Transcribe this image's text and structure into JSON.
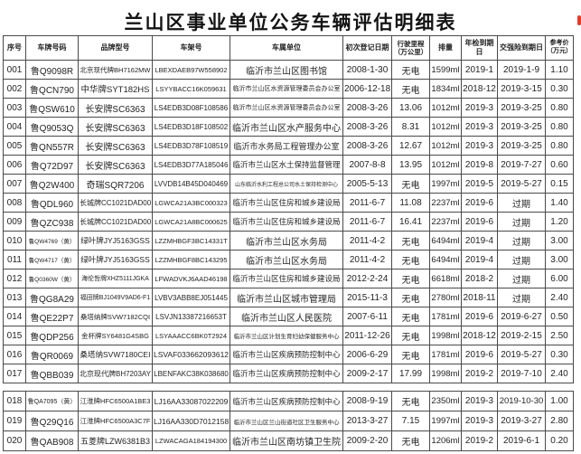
{
  "page": {
    "title": "兰山区事业单位公务车辆评估明细表"
  },
  "colors": {
    "red_mark": "#e23b2e",
    "border": "#4a4a4a",
    "text": "#262626"
  },
  "icons": {
    "red_mark": "red-edge-mark"
  },
  "table": {
    "column_keys": [
      "cell-index",
      "cell-plate-number",
      "cell-brand-model",
      "cell-vin",
      "cell-owner-unit",
      "cell-registration-date",
      "cell-mileage",
      "cell-displacement",
      "cell-inspection-due",
      "cell-insurance-due",
      "cell-reference-price"
    ],
    "headers": [
      "序号",
      "车牌号码",
      "品牌型号",
      "车架号",
      "车属单位",
      "初次登记日期",
      "行驶里程\n（万公里）",
      "排量",
      "年检到期日",
      "交强险到期日",
      "参考价\n（万元）"
    ],
    "rows": [
      [
        "001",
        "鲁Q9098R",
        "北京现代牌BH7162MW",
        "LBEXDAEB97W558902",
        "临沂市兰山区图书馆",
        "2008-1-30",
        "无电",
        "1599ml",
        "2019-1",
        "2019-1-9",
        "1.10"
      ],
      [
        "002",
        "鲁QCN790",
        "中华牌SYT182HS",
        "LSYYBACC16K059631",
        "临沂市兰山区水资源管理委员会办公室",
        "2006-12-18",
        "无电",
        "1834ml",
        "2018-12",
        "2019-3-15",
        "0.30"
      ],
      [
        "003",
        "鲁QSW610",
        "长安牌SC6363",
        "LS4EDB3D08F108586",
        "临沂市兰山区水资源管理委员会办公室",
        "2008-3-26",
        "13.06",
        "1012ml",
        "2019-3",
        "2019-3-25",
        "0.80"
      ],
      [
        "004",
        "鲁Q9053Q",
        "长安牌SC6363",
        "LS4EDB3D18F108502",
        "临沂市兰山区水产服务中心",
        "2008-3-26",
        "8.31",
        "1012ml",
        "2019-3",
        "2019-3-25",
        "0.80"
      ],
      [
        "005",
        "鲁QN557R",
        "长安牌SC6363",
        "LS4EDB3D78F108519",
        "临沂市水务局工程管理办公室",
        "2008-3-26",
        "12.67",
        "1012ml",
        "2019-3",
        "2019-3-25",
        "0.80"
      ],
      [
        "006",
        "鲁Q72D97",
        "长安牌SC6363",
        "LS4EDB3D77A185046",
        "临沂市兰山区水土保持监督管理",
        "2007-8-8",
        "13.95",
        "1012ml",
        "2019-8",
        "2019-7-27",
        "0.60"
      ],
      [
        "007",
        "鲁Q2W400",
        "奇瑞SQR7206",
        "LVVDB14B45D040469",
        "山东临沂水利工程总公司水土保持检测中心",
        "2005-5-13",
        "无电",
        "1997ml",
        "2019-5",
        "2019-5-27",
        "0.15"
      ],
      [
        "008",
        "鲁QDL960",
        "长城牌CC1021DAD00",
        "LGWCA21A3BC000323",
        "临沂市兰山区住房和城乡建设局",
        "2011-6-7",
        "11.08",
        "2237ml",
        "2019-6",
        "过期",
        "1.40"
      ],
      [
        "009",
        "鲁QZC938",
        "长城牌CC1021DAD00",
        "LGWCA21A8BC000625",
        "临沂市兰山区住房和城乡建设局",
        "2011-6-7",
        "16.41",
        "2237ml",
        "2019-6",
        "过期",
        "1.20"
      ],
      [
        "010",
        "鲁QW4769（黄）",
        "绿叶牌JYJ5163GSS",
        "LZZMHBGF3BC14331T",
        "临沂市兰山区水务局",
        "2011-4-2",
        "无电",
        "6494ml",
        "2019-4",
        "过期",
        "3.00"
      ],
      [
        "011",
        "鲁QW4717（黄）",
        "绿叶牌JYJ5163GSS",
        "LZZMHBGF8BC143295",
        "临沂市兰山区水务局",
        "2011-4-2",
        "无电",
        "6494ml",
        "2019-4",
        "过期",
        "3.00"
      ],
      [
        "012",
        "鲁Q0360W（黄）",
        "海伦哲牌XHZ5111JGKA",
        "LFWADVKJ6AAD46198",
        "临沂市兰山区住房和城乡建设局",
        "2012-2-24",
        "无电",
        "6618ml",
        "2018-2",
        "过期",
        "6.00"
      ],
      [
        "013",
        "鲁QG8A29",
        "福田牌BJ1049V9AD6-F1",
        "LVBV3ABB8EJ051445",
        "临沂市兰山区城市管理局",
        "2015-11-3",
        "无电",
        "2780ml",
        "2018-11",
        "过期",
        "2.40"
      ],
      [
        "014",
        "鲁QE22P7",
        "桑塔纳牌SVW7182CQI",
        "LSVJN13387216653T",
        "临沂市兰山区人民医院",
        "2007-6-11",
        "无电",
        "1781ml",
        "2019-6",
        "2019-6-27",
        "0.50"
      ],
      [
        "015",
        "鲁QDP256",
        "金杯牌SY6481G4SBG",
        "LSYAAACC6BK0T2924",
        "临沂市兰山区计划生育妇幼保健服务中心",
        "2011-12-26",
        "无电",
        "1998ml",
        "2018-12",
        "2019-2-15",
        "2.50"
      ],
      [
        "016",
        "鲁QR0069",
        "桑塔纳SVW7180CEI",
        "LSVAF033662093612",
        "临沂市兰山区疾病预防控制中心",
        "2006-6-29",
        "无电",
        "1781ml",
        "2019-6",
        "2019-5-27",
        "0.30"
      ],
      [
        "017",
        "鲁QBB039",
        "北京现代牌BH7203AY",
        "LBENFAKC38K038680",
        "临沂市兰山区疾病预防控制中心",
        "2009-2-17",
        "17.99",
        "1998ml",
        "2019-2",
        "2019-7-10",
        "2.40"
      ]
    ],
    "rows2": [
      [
        "018",
        "鲁QA7095（黄）",
        "江淮牌HFC6500A1BE3",
        "LJ16AA33087022209",
        "临沂市兰山区疾病预防控制中心",
        "2008-9-19",
        "无电",
        "2350ml",
        "2019-3",
        "2019-10-30",
        "1.00"
      ],
      [
        "019",
        "鲁Q29Q16",
        "江淮牌HFC6500A3C7F",
        "LJ16AA330D7012158",
        "临沂市兰山区兰山街道社区卫生服务中心",
        "2013-3-27",
        "7.15",
        "1997ml",
        "2019-3",
        "2019-3-27",
        "2.80"
      ],
      [
        "020",
        "鲁QAB908",
        "五菱牌LZW6381B3",
        "LZWACAGA184194300",
        "临沂市兰山区南坊镇卫生院",
        "2009-2-20",
        "无电",
        "1206ml",
        "2019-2",
        "2019-6-1",
        "0.20"
      ]
    ]
  }
}
